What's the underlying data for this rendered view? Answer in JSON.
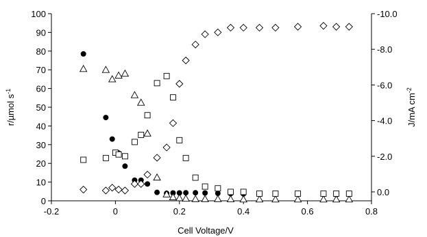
{
  "chart_data": {
    "type": "scatter",
    "title": "",
    "xlabel": "Cell Voltage/V",
    "ylabel_left": "r/µmol s",
    "ylabel_left_sup": "-1",
    "ylabel_right": "J/mA cm",
    "ylabel_right_sup": "-2",
    "xlim": [
      -0.2,
      0.8
    ],
    "ylim_left": [
      0,
      100
    ],
    "ylim_right": [
      0.5,
      -10.0
    ],
    "x_ticks": [
      "-0.2",
      "0",
      "0.2",
      "0.4",
      "0.6",
      "0.8"
    ],
    "y_left_ticks": [
      "0",
      "10",
      "20",
      "30",
      "40",
      "50",
      "60",
      "70",
      "80",
      "90",
      "100"
    ],
    "y_right_ticks": [
      "0.0",
      "-2.0",
      "-4.0",
      "-6.0",
      "-8.0",
      "-10.0"
    ],
    "grid": false,
    "legend": "none",
    "series": [
      {
        "marker": "filled-circle",
        "axis": "left",
        "x": [
          -0.1,
          -0.03,
          -0.01,
          0.01,
          0.03,
          0.06,
          0.08,
          0.1,
          0.13,
          0.16,
          0.18,
          0.2,
          0.22,
          0.25,
          0.28,
          0.32,
          0.36,
          0.4,
          0.45,
          0.5,
          0.57,
          0.65,
          0.69,
          0.73
        ],
        "y": [
          78.5,
          44.5,
          33.0,
          25.5,
          18.5,
          11.0,
          11.0,
          9.0,
          4.5,
          4.0,
          4.2,
          4.2,
          4.3,
          4.3,
          4.2,
          4.0,
          3.8,
          3.7,
          3.5,
          3.8,
          3.8,
          3.4,
          3.2,
          3.4
        ]
      },
      {
        "marker": "open-triangle",
        "axis": "left",
        "x": [
          -0.1,
          -0.03,
          -0.01,
          0.01,
          0.03,
          0.06,
          0.08,
          0.1,
          0.13,
          0.16,
          0.18,
          0.2,
          0.22,
          0.25,
          0.28,
          0.32,
          0.36,
          0.4,
          0.45,
          0.5,
          0.57,
          0.65,
          0.69,
          0.73
        ],
        "y": [
          70.5,
          70.0,
          65.0,
          67.0,
          68.0,
          56.5,
          52.5,
          36.0,
          12.5,
          3.5,
          2.0,
          1.5,
          1.2,
          1.0,
          1.0,
          1.0,
          0.9,
          0.8,
          0.8,
          0.8,
          0.8,
          0.8,
          0.8,
          0.8
        ]
      },
      {
        "marker": "open-square",
        "axis": "right",
        "x": [
          -0.1,
          -0.03,
          0.0,
          0.01,
          0.03,
          0.06,
          0.08,
          0.1,
          0.13,
          0.16,
          0.18,
          0.2,
          0.22,
          0.25,
          0.28,
          0.32,
          0.36,
          0.4,
          0.45,
          0.5,
          0.57,
          0.65,
          0.69,
          0.73
        ],
        "y": [
          -1.8,
          -1.9,
          -2.2,
          -2.1,
          -2.0,
          -2.8,
          -3.2,
          -4.3,
          -6.1,
          -6.5,
          -5.3,
          -2.9,
          -1.9,
          -0.8,
          -0.3,
          -0.2,
          0.0,
          0.0,
          0.1,
          0.1,
          0.1,
          0.1,
          0.1,
          0.1
        ]
      },
      {
        "marker": "open-diamond",
        "axis": "left",
        "x": [
          -0.1,
          -0.03,
          -0.01,
          0.01,
          0.03,
          0.06,
          0.08,
          0.1,
          0.13,
          0.16,
          0.18,
          0.2,
          0.22,
          0.25,
          0.28,
          0.32,
          0.36,
          0.4,
          0.45,
          0.5,
          0.57,
          0.65,
          0.69,
          0.73
        ],
        "y": [
          6.0,
          5.5,
          7.0,
          6.0,
          5.5,
          9.0,
          9.0,
          14.0,
          23.0,
          28.5,
          41.5,
          62.5,
          75.0,
          83.5,
          89.0,
          90.0,
          92.5,
          92.5,
          92.5,
          92.5,
          93.0,
          93.5,
          93.0,
          93.0
        ]
      }
    ]
  }
}
